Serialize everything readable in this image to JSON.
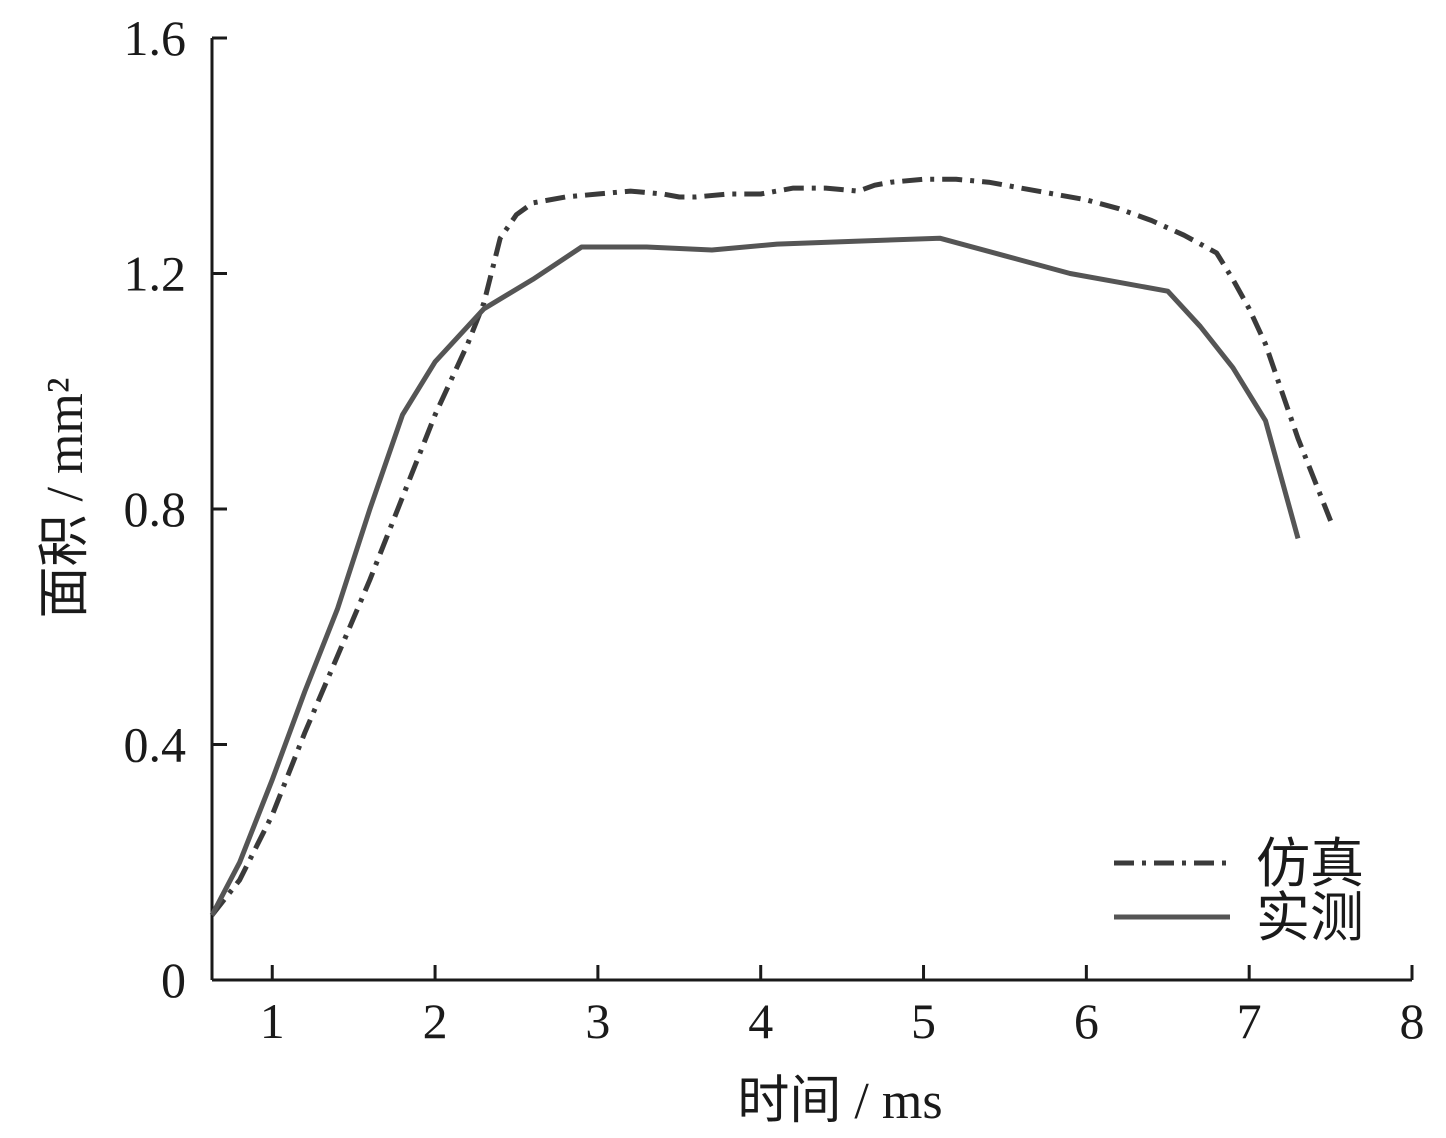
{
  "chart_data": {
    "type": "line",
    "xlabel": "时间 / ms",
    "ylabel": "面积 / mm²",
    "xlim": [
      0.63,
      8
    ],
    "ylim": [
      0,
      1.6
    ],
    "xticks": [
      "1",
      "2",
      "3",
      "4",
      "5",
      "6",
      "7",
      "8"
    ],
    "yticks": [
      "0",
      "0.4",
      "0.8",
      "1.2",
      "1.6"
    ],
    "grid": false,
    "legend_position": "bottom-right",
    "series": [
      {
        "name": "仿真",
        "style": "dashdot",
        "color": "#3a3a3a",
        "x": [
          0.63,
          0.8,
          1.0,
          1.2,
          1.4,
          1.6,
          1.8,
          2.0,
          2.2,
          2.3,
          2.4,
          2.5,
          2.6,
          2.8,
          3.0,
          3.2,
          3.4,
          3.5,
          3.6,
          3.8,
          4.0,
          4.2,
          4.4,
          4.6,
          4.7,
          4.8,
          5.0,
          5.2,
          5.4,
          5.6,
          5.8,
          6.0,
          6.2,
          6.4,
          6.6,
          6.8,
          6.9,
          7.0,
          7.1,
          7.2,
          7.3,
          7.4,
          7.5
        ],
        "y": [
          0.11,
          0.17,
          0.28,
          0.42,
          0.55,
          0.68,
          0.82,
          0.96,
          1.08,
          1.15,
          1.26,
          1.3,
          1.32,
          1.33,
          1.335,
          1.34,
          1.335,
          1.33,
          1.33,
          1.335,
          1.335,
          1.345,
          1.345,
          1.34,
          1.35,
          1.355,
          1.36,
          1.36,
          1.355,
          1.345,
          1.335,
          1.325,
          1.31,
          1.29,
          1.265,
          1.235,
          1.19,
          1.14,
          1.08,
          1.0,
          0.92,
          0.85,
          0.78
        ]
      },
      {
        "name": "实测",
        "style": "solid",
        "color": "#555555",
        "x": [
          0.63,
          0.8,
          1.0,
          1.2,
          1.4,
          1.6,
          1.8,
          2.0,
          2.3,
          2.6,
          2.9,
          3.3,
          3.7,
          4.1,
          4.6,
          5.1,
          5.5,
          5.9,
          6.2,
          6.5,
          6.7,
          6.9,
          7.1,
          7.3
        ],
        "y": [
          0.11,
          0.2,
          0.34,
          0.49,
          0.63,
          0.8,
          0.96,
          1.05,
          1.14,
          1.19,
          1.245,
          1.245,
          1.24,
          1.25,
          1.255,
          1.26,
          1.23,
          1.2,
          1.185,
          1.17,
          1.11,
          1.04,
          0.95,
          0.75
        ]
      }
    ]
  }
}
